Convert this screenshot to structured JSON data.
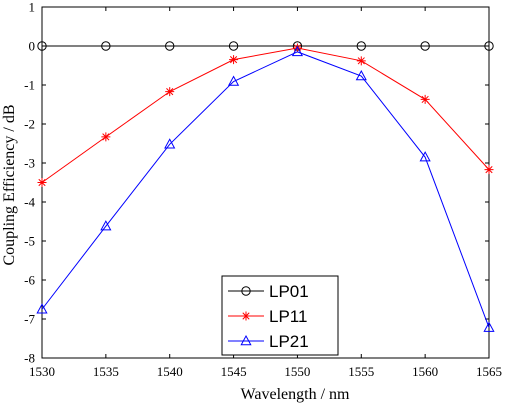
{
  "chart_data": {
    "type": "line",
    "xlabel": "Wavelength / nm",
    "ylabel": "Coupling Efficiency / dB",
    "xlim": [
      1530,
      1565
    ],
    "ylim": [
      -8,
      1
    ],
    "grid": false,
    "legend_position": "bottom-center",
    "x": [
      1530,
      1535,
      1540,
      1545,
      1550,
      1555,
      1560,
      1565
    ],
    "x_ticks": [
      "1530",
      "1535",
      "1540",
      "1545",
      "1550",
      "1555",
      "1560",
      "1565"
    ],
    "y_ticks": [
      "1",
      "0",
      "-1",
      "-2",
      "-3",
      "-4",
      "-5",
      "-6",
      "-7",
      "-8"
    ],
    "series": [
      {
        "name": "LP01",
        "color": "#000000",
        "marker": "circle",
        "values": [
          0,
          0,
          0,
          0,
          0,
          0,
          0,
          0
        ]
      },
      {
        "name": "LP11",
        "color": "#ff0000",
        "marker": "star",
        "values": [
          -3.5,
          -2.33,
          -1.17,
          -0.35,
          -0.05,
          -0.38,
          -1.37,
          -3.17
        ]
      },
      {
        "name": "LP21",
        "color": "#0000ff",
        "marker": "triangle",
        "values": [
          -6.75,
          -4.62,
          -2.52,
          -0.91,
          -0.15,
          -0.77,
          -2.85,
          -7.22
        ]
      }
    ]
  }
}
